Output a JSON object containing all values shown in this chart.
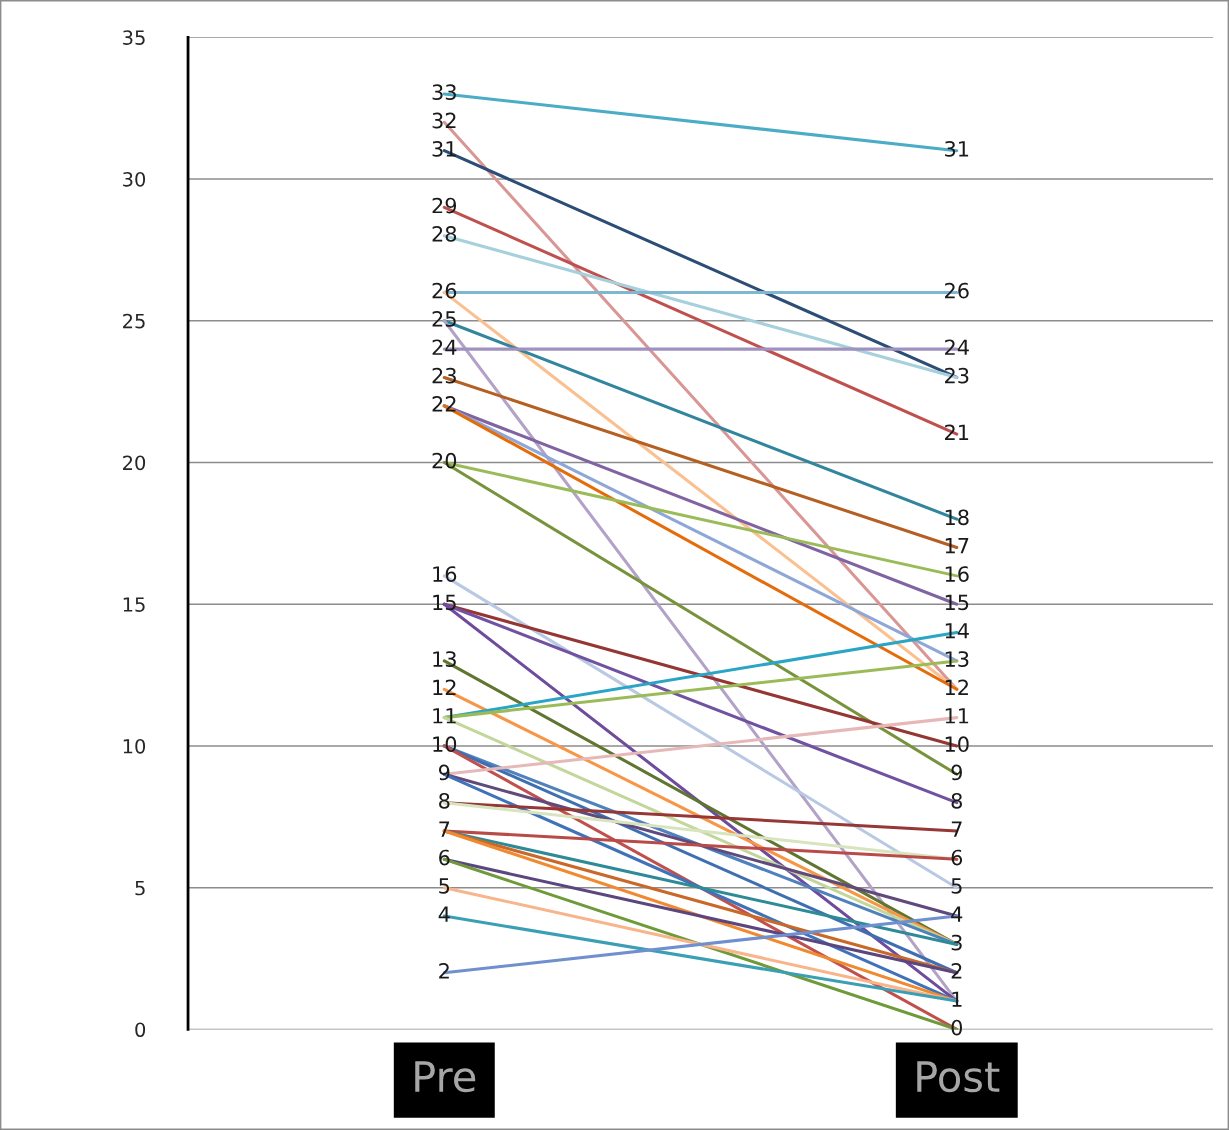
{
  "chart_data": {
    "type": "line",
    "categories": [
      "Pre",
      "Post"
    ],
    "ylim": [
      0,
      35
    ],
    "yticks": [
      0,
      5,
      10,
      15,
      20,
      25,
      30,
      35
    ],
    "grid": "y",
    "legend": false,
    "marker": "none",
    "line_style": "solid",
    "series": [
      {
        "color": "#4bacc6",
        "values": [
          33,
          31
        ],
        "value_labels": [
          "33",
          "31"
        ]
      },
      {
        "color": "#d99694",
        "values": [
          32,
          12
        ],
        "value_labels": [
          "32",
          "12"
        ]
      },
      {
        "color": "#2c4d75",
        "values": [
          31,
          23
        ],
        "value_labels": [
          "31",
          "23"
        ]
      },
      {
        "color": "#c0504d",
        "values": [
          29,
          21
        ],
        "value_labels": [
          "29",
          "21"
        ]
      },
      {
        "color": "#a5d0dc",
        "values": [
          28,
          23
        ],
        "value_labels": [
          "28",
          null
        ]
      },
      {
        "color": "#7fb7d0",
        "values": [
          26,
          26
        ],
        "value_labels": [
          "26",
          "26"
        ]
      },
      {
        "color": "#fac090",
        "values": [
          26,
          12
        ],
        "value_labels": [
          null,
          null
        ]
      },
      {
        "color": "#31859c",
        "values": [
          25,
          18
        ],
        "value_labels": [
          "25",
          "18"
        ]
      },
      {
        "color": "#b3a2c7",
        "values": [
          25,
          1
        ],
        "value_labels": [
          null,
          "1"
        ]
      },
      {
        "color": "#a092c0",
        "values": [
          24,
          24
        ],
        "value_labels": [
          "24",
          "24"
        ]
      },
      {
        "color": "#b65f22",
        "values": [
          23,
          17
        ],
        "value_labels": [
          "23",
          "17"
        ]
      },
      {
        "color": "#8064a2",
        "values": [
          22,
          15
        ],
        "value_labels": [
          "22",
          "15"
        ]
      },
      {
        "color": "#8ea7d6",
        "values": [
          22,
          13
        ],
        "value_labels": [
          null,
          "13"
        ]
      },
      {
        "color": "#e46c0a",
        "values": [
          22,
          12
        ],
        "value_labels": [
          null,
          null
        ]
      },
      {
        "color": "#9bbb59",
        "values": [
          20,
          16
        ],
        "value_labels": [
          "20",
          "16"
        ]
      },
      {
        "color": "#77933c",
        "values": [
          20,
          9
        ],
        "value_labels": [
          null,
          "9"
        ]
      },
      {
        "color": "#b9c9e3",
        "values": [
          16,
          5
        ],
        "value_labels": [
          "16",
          "5"
        ]
      },
      {
        "color": "#943634",
        "values": [
          15,
          10
        ],
        "value_labels": [
          "15",
          "10"
        ]
      },
      {
        "color": "#7052a0",
        "values": [
          15,
          8
        ],
        "value_labels": [
          null,
          "8"
        ]
      },
      {
        "color": "#6e4b9c",
        "values": [
          15,
          1
        ],
        "value_labels": [
          null,
          null
        ]
      },
      {
        "color": "#5f7530",
        "values": [
          13,
          3
        ],
        "value_labels": [
          "13",
          "3"
        ]
      },
      {
        "color": "#f79646",
        "values": [
          12,
          3
        ],
        "value_labels": [
          "12",
          null
        ]
      },
      {
        "color": "#2aa5c4",
        "values": [
          11,
          14
        ],
        "value_labels": [
          "11",
          "14"
        ]
      },
      {
        "color": "#9bbb59",
        "values": [
          11,
          13
        ],
        "value_labels": [
          null,
          null
        ]
      },
      {
        "color": "#c3d69b",
        "values": [
          11,
          3
        ],
        "value_labels": [
          null,
          null
        ]
      },
      {
        "color": "#4f81bd",
        "values": [
          10,
          3
        ],
        "value_labels": [
          "10",
          null
        ]
      },
      {
        "color": "#3e6fb0",
        "values": [
          10,
          2
        ],
        "value_labels": [
          null,
          "2"
        ]
      },
      {
        "color": "#c0504d",
        "values": [
          10,
          0
        ],
        "value_labels": [
          null,
          "0"
        ]
      },
      {
        "color": "#e6b9b8",
        "values": [
          9,
          11
        ],
        "value_labels": [
          "9",
          "11"
        ]
      },
      {
        "color": "#604a7b",
        "values": [
          9,
          4
        ],
        "value_labels": [
          null,
          "4"
        ]
      },
      {
        "color": "#3f72b8",
        "values": [
          9,
          1
        ],
        "value_labels": [
          null,
          null
        ]
      },
      {
        "color": "#953735",
        "values": [
          8,
          7
        ],
        "value_labels": [
          "8",
          "7"
        ]
      },
      {
        "color": "#d7e4bd",
        "values": [
          8,
          6
        ],
        "value_labels": [
          null,
          "6"
        ]
      },
      {
        "color": "#b94a48",
        "values": [
          7,
          6
        ],
        "value_labels": [
          "7",
          null
        ]
      },
      {
        "color": "#2e8a97",
        "values": [
          7,
          3
        ],
        "value_labels": [
          null,
          null
        ]
      },
      {
        "color": "#c8692a",
        "values": [
          7,
          2
        ],
        "value_labels": [
          null,
          null
        ]
      },
      {
        "color": "#f08a30",
        "values": [
          7,
          1
        ],
        "value_labels": [
          null,
          null
        ]
      },
      {
        "color": "#5c4680",
        "values": [
          6,
          2
        ],
        "value_labels": [
          "6",
          null
        ]
      },
      {
        "color": "#6f9a3a",
        "values": [
          6,
          0
        ],
        "value_labels": [
          null,
          null
        ]
      },
      {
        "color": "#f8b48a",
        "values": [
          5,
          1
        ],
        "value_labels": [
          "5",
          null
        ]
      },
      {
        "color": "#3a9fb5",
        "values": [
          4,
          1
        ],
        "value_labels": [
          "4",
          null
        ]
      },
      {
        "color": "#6f8fcf",
        "values": [
          2,
          4
        ],
        "value_labels": [
          "2",
          null
        ]
      }
    ]
  }
}
